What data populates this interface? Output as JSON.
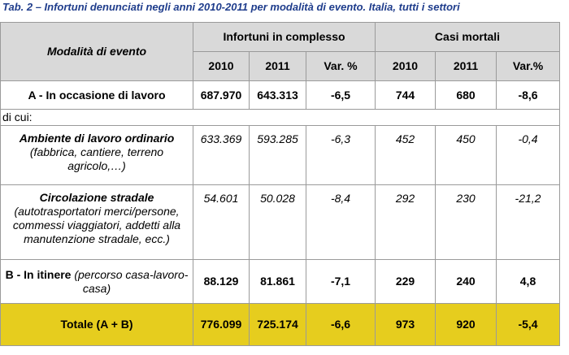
{
  "title": "Tab. 2 – Infortuni denunciati negli anni 2010-2011 per modalità di evento. Italia, tutti i settori",
  "header": {
    "modalita": "Modalità di evento",
    "infortuni": "Infortuni in complesso",
    "casi": "Casi mortali",
    "y2010": "2010",
    "y2011": "2011",
    "var1": "Var. %",
    "var2": "Var.%"
  },
  "rows": {
    "a": {
      "label": "A - In occasione di lavoro",
      "inf2010": "687.970",
      "inf2011": "643.313",
      "infvar": "-6,5",
      "m2010": "744",
      "m2011": "680",
      "mvar": "-8,6"
    },
    "dicui": "di cui:",
    "ambiente": {
      "label": "Ambiente di lavoro ordinario",
      "sub": "(fabbrica, cantiere, terreno agricolo,…)",
      "inf2010": "633.369",
      "inf2011": "593.285",
      "infvar": "-6,3",
      "m2010": "452",
      "m2011": "450",
      "mvar": "-0,4"
    },
    "circolazione": {
      "label": "Circolazione stradale",
      "sub": "(autotrasportatori merci/persone, commessi viaggiatori, addetti alla manutenzione stradale, ecc.)",
      "inf2010": "54.601",
      "inf2011": "50.028",
      "infvar": "-8,4",
      "m2010": "292",
      "m2011": "230",
      "mvar": "-21,2"
    },
    "b": {
      "label": "B - In itinere",
      "sub": "(percorso casa-lavoro-casa)",
      "inf2010": "88.129",
      "inf2011": "81.861",
      "infvar": "-7,1",
      "m2010": "229",
      "m2011": "240",
      "mvar": "4,8"
    },
    "totale": {
      "label": "Totale (A + B)",
      "inf2010": "776.099",
      "inf2011": "725.174",
      "infvar": "-6,6",
      "m2010": "973",
      "m2011": "920",
      "mvar": "-5,4"
    }
  },
  "colors": {
    "title": "#1f3d8c",
    "header_bg": "#d9d9d9",
    "total_bg": "#e6cd1e"
  }
}
